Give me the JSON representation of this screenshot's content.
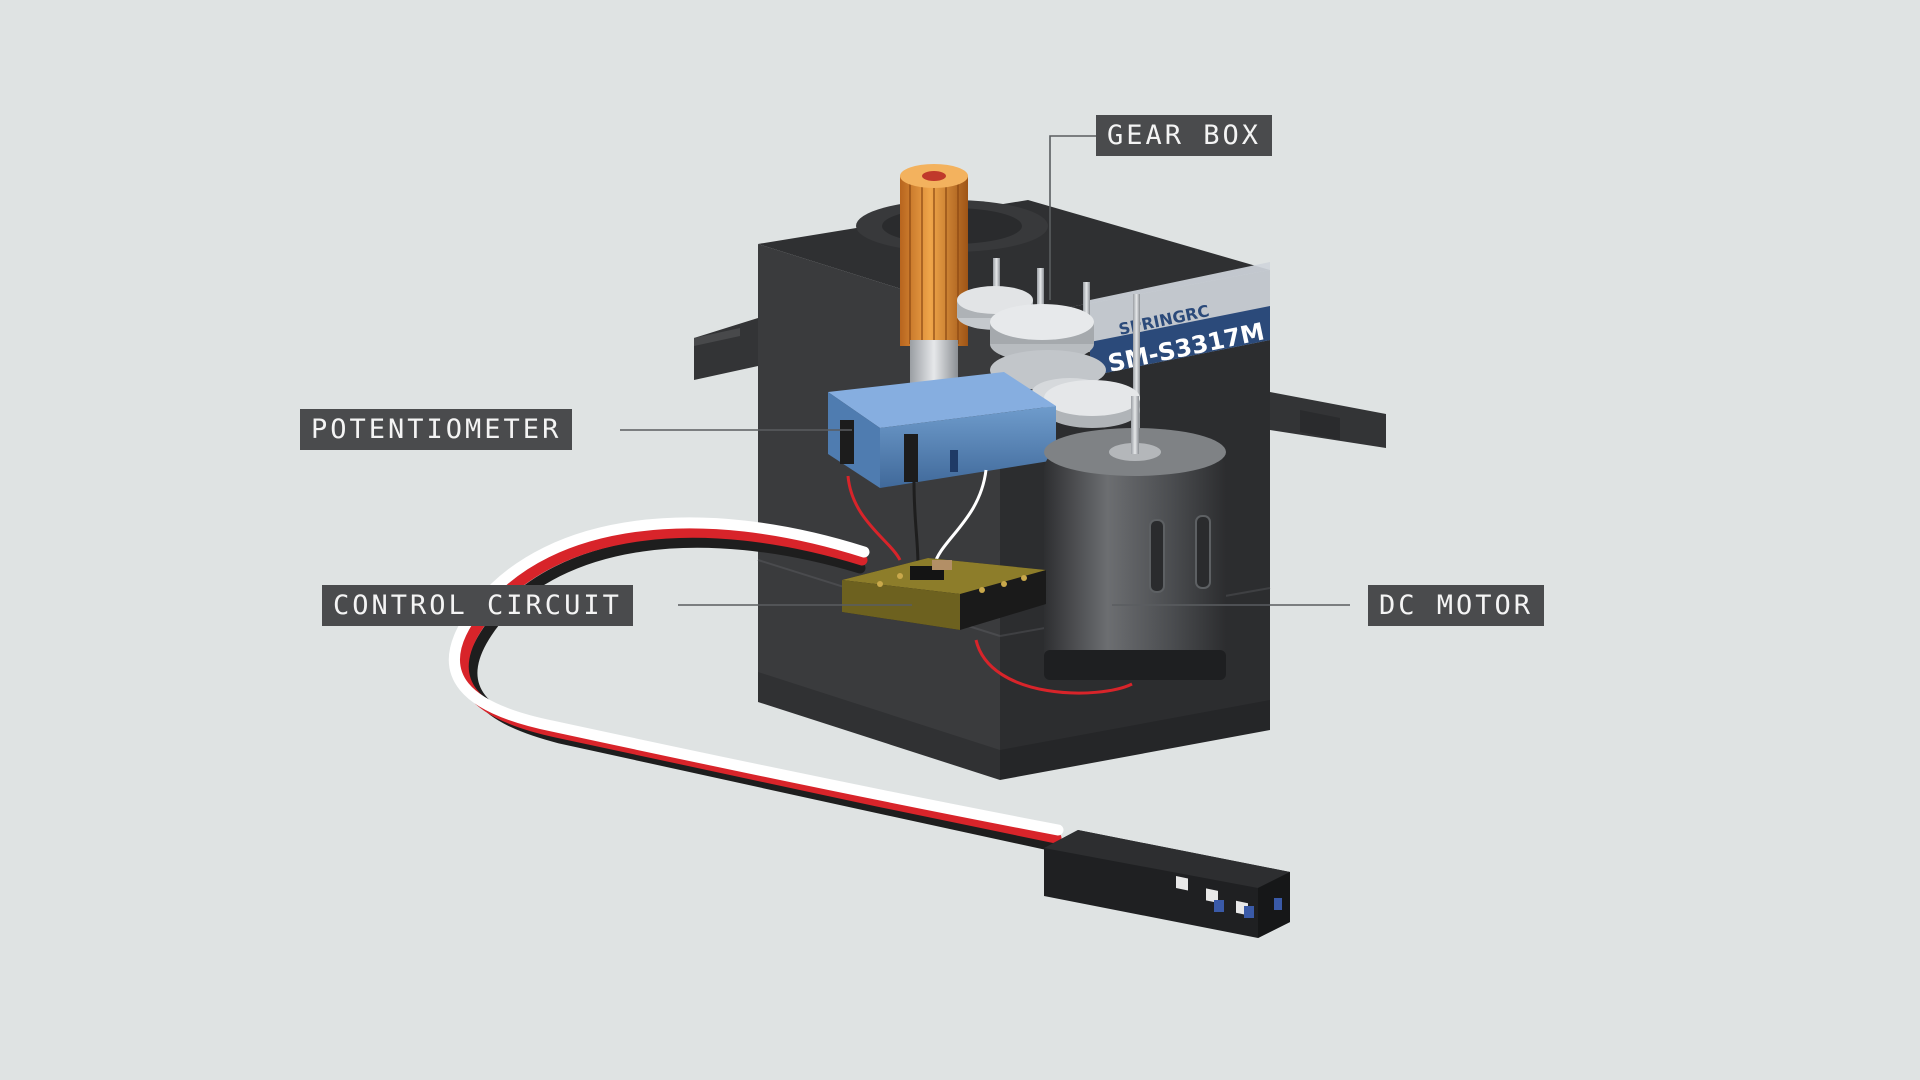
{
  "labels": {
    "gear_box": "GEAR BOX",
    "potentiometer": "POTENTIOMETER",
    "control_circuit": "CONTROL CIRCUIT",
    "dc_motor": "DC MOTOR"
  },
  "servo_brand": "SPRINGRC",
  "servo_model": "SM-S3317M",
  "colors": {
    "background": "#dfe3e3",
    "label_bg": "#4a4b4d",
    "label_text": "#f4f4f4",
    "housing": "#3a3b3d",
    "potentiometer": "#5a86b8",
    "output_shaft": "#d4872e",
    "pcb": "#8a7a2a",
    "wire_signal": "#ffffff",
    "wire_power": "#d8242a",
    "wire_ground": "#1e1e1e"
  }
}
